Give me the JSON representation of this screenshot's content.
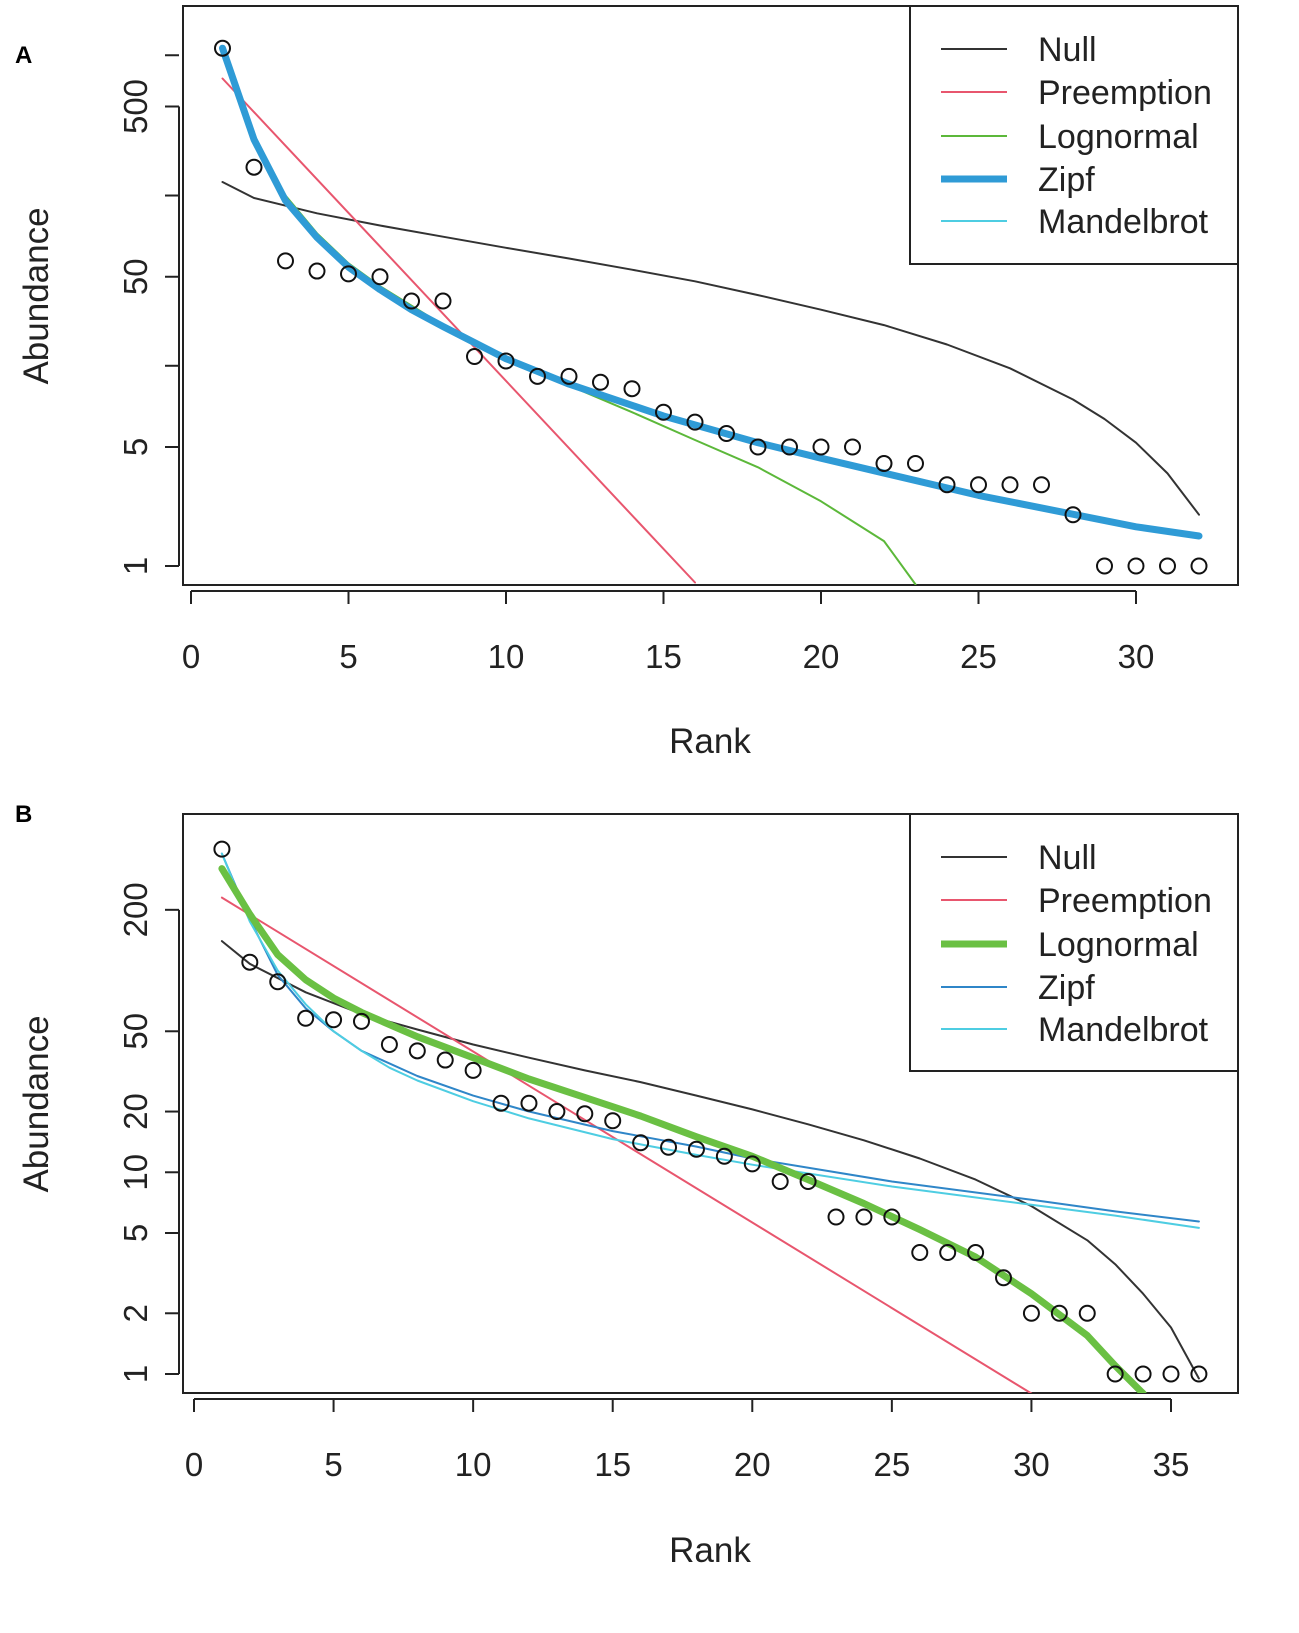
{
  "chart_data": [
    {
      "panel": "A",
      "type": "scatter",
      "xlabel": "Rank",
      "ylabel": "Abundance",
      "log_y": true,
      "xlim": [
        0,
        32
      ],
      "xticks": [
        "0",
        "5",
        "10",
        "15",
        "20",
        "25",
        "30"
      ],
      "yticks": [
        "1",
        "5",
        "50",
        "500"
      ],
      "observed": {
        "name": "Observed",
        "x": [
          1,
          2,
          3,
          4,
          5,
          6,
          7,
          8,
          9,
          10,
          11,
          12,
          13,
          14,
          15,
          16,
          17,
          18,
          19,
          20,
          21,
          22,
          23,
          24,
          25,
          26,
          27,
          28,
          29,
          30,
          31,
          32
        ],
        "y": [
          1100,
          220,
          62,
          54,
          52,
          50,
          36,
          36,
          17,
          16,
          13,
          13,
          12,
          11,
          8,
          7,
          6,
          5,
          5,
          5,
          5,
          4,
          4,
          3,
          3,
          3,
          3,
          2,
          1,
          1,
          1,
          1
        ]
      },
      "series": [
        {
          "name": "Null",
          "color": "#333333",
          "width": 2,
          "x": [
            1,
            2,
            4,
            6,
            8,
            10,
            12,
            14,
            16,
            18,
            20,
            22,
            24,
            26,
            28,
            29,
            30,
            31,
            32
          ],
          "y": [
            180,
            145,
            118,
            100,
            86,
            74,
            64,
            55,
            47,
            39,
            32,
            26,
            20,
            14.5,
            9.5,
            7.3,
            5.3,
            3.5,
            2.0
          ]
        },
        {
          "name": "Preemption",
          "color": "#e8566e",
          "width": 2,
          "x": [
            1,
            16
          ],
          "y": [
            730,
            0.8
          ]
        },
        {
          "name": "Lognormal",
          "color": "#5cb83a",
          "width": 2,
          "x": [
            1,
            2,
            3,
            4,
            5,
            6,
            8,
            10,
            12,
            14,
            16,
            18,
            20,
            22,
            23
          ],
          "y": [
            1100,
            330,
            150,
            90,
            60,
            44,
            26,
            17,
            11.5,
            8.0,
            5.5,
            3.8,
            2.4,
            1.4,
            0.78
          ]
        },
        {
          "name": "Zipf",
          "color": "#2f9bd6",
          "width": 7,
          "x": [
            1,
            2,
            3,
            4,
            5,
            6,
            7,
            8,
            10,
            12,
            15,
            18,
            20,
            25,
            30,
            32
          ],
          "y": [
            1100,
            320,
            140,
            85,
            57,
            42,
            32,
            25.5,
            16.5,
            11.7,
            7.6,
            5.3,
            4.3,
            2.6,
            1.7,
            1.5
          ]
        },
        {
          "name": "Mandelbrot",
          "color": "#4ecde2",
          "width": 2,
          "x": [
            1,
            2,
            3,
            4,
            5,
            6,
            7,
            8,
            10,
            12,
            15,
            18,
            20,
            25,
            30,
            32
          ],
          "y": [
            1000,
            330,
            145,
            87,
            58,
            43,
            33,
            26,
            17,
            12,
            7.8,
            5.4,
            4.4,
            2.65,
            1.72,
            1.5
          ]
        }
      ],
      "legend": [
        "Null",
        "Preemption",
        "Lognormal",
        "Zipf",
        "Mandelbrot"
      ]
    },
    {
      "panel": "B",
      "type": "scatter",
      "xlabel": "Rank",
      "ylabel": "Abundance",
      "log_y": true,
      "xlim": [
        0,
        36
      ],
      "xticks": [
        "0",
        "5",
        "10",
        "15",
        "20",
        "25",
        "30",
        "35"
      ],
      "yticks": [
        "1",
        "2",
        "5",
        "10",
        "20",
        "50",
        "200"
      ],
      "observed": {
        "name": "Observed",
        "x": [
          1,
          2,
          3,
          4,
          5,
          6,
          7,
          8,
          9,
          10,
          11,
          12,
          13,
          14,
          15,
          16,
          17,
          18,
          19,
          20,
          21,
          22,
          23,
          24,
          25,
          26,
          27,
          28,
          29,
          30,
          31,
          32,
          33,
          34,
          35,
          36
        ],
        "y": [
          400,
          110,
          88,
          58,
          57,
          56,
          43,
          40,
          36,
          32,
          22,
          22,
          20,
          19.5,
          18,
          14,
          13.3,
          13,
          12,
          11,
          9,
          9,
          6,
          6,
          6,
          4,
          4,
          4,
          3,
          2,
          2,
          2,
          1,
          1,
          1,
          1
        ]
      },
      "series": [
        {
          "name": "Null",
          "color": "#333333",
          "width": 2,
          "x": [
            1,
            2,
            4,
            6,
            8,
            10,
            12,
            14,
            16,
            18,
            20,
            22,
            24,
            26,
            28,
            30,
            32,
            33,
            34,
            35,
            36
          ],
          "y": [
            140,
            108,
            78,
            61,
            51,
            43,
            37,
            32,
            28,
            24,
            20.5,
            17.3,
            14.4,
            11.7,
            9.2,
            6.8,
            4.6,
            3.5,
            2.5,
            1.7,
            0.95
          ]
        },
        {
          "name": "Preemption",
          "color": "#e8566e",
          "width": 2,
          "x": [
            1,
            30
          ],
          "y": [
            230,
            0.8
          ]
        },
        {
          "name": "Lognormal",
          "color": "#6ac043",
          "width": 7,
          "x": [
            1,
            2,
            3,
            4,
            5,
            6,
            8,
            10,
            12,
            14,
            16,
            18,
            20,
            22,
            24,
            26,
            28,
            30,
            32,
            33,
            34
          ],
          "y": [
            320,
            190,
            120,
            90,
            73,
            62,
            47,
            37,
            29,
            23.5,
            19,
            15,
            12,
            9.2,
            7,
            5.2,
            3.8,
            2.5,
            1.55,
            1.1,
            0.8
          ]
        },
        {
          "name": "Zipf",
          "color": "#2f86c8",
          "width": 2,
          "x": [
            1,
            2,
            3,
            4,
            5,
            6,
            8,
            10,
            12,
            15,
            18,
            20,
            25,
            30,
            33,
            36
          ],
          "y": [
            380,
            180,
            95,
            65,
            50,
            40,
            30,
            24,
            20,
            16,
            13.4,
            11.7,
            9,
            7.3,
            6.4,
            5.7
          ]
        },
        {
          "name": "Mandelbrot",
          "color": "#4ecde2",
          "width": 2,
          "x": [
            1,
            2,
            3,
            4,
            5,
            6,
            7,
            8,
            10,
            12,
            15,
            18,
            20,
            25,
            30,
            33,
            36
          ],
          "y": [
            380,
            175,
            100,
            68,
            50,
            40,
            33,
            28.5,
            22.5,
            18.5,
            14.6,
            12.2,
            10.9,
            8.5,
            6.9,
            6.1,
            5.3
          ]
        }
      ],
      "legend": [
        "Null",
        "Preemption",
        "Lognormal",
        "Zipf",
        "Mandelbrot"
      ]
    }
  ]
}
